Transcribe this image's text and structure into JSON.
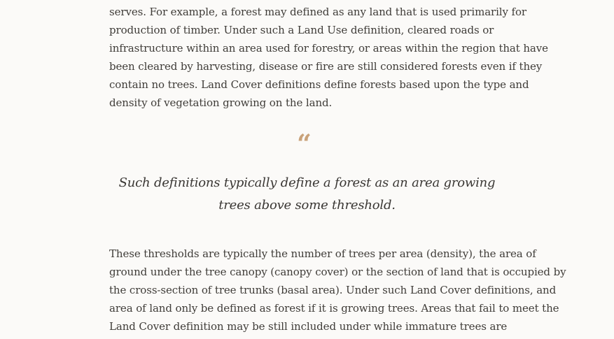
{
  "paragraph_1": {
    "lines": [
      "serves. For example, a forest may defined as any land that is used primarily for",
      "production of timber. Under such a Land Use definition, cleared roads or",
      "infrastructure within an area used for forestry, or areas within the region that have",
      "been cleared by harvesting, disease or fire are still considered forests even if they",
      "contain no trees. Land Cover definitions define forests based upon the type and",
      "density of vegetation growing on the land."
    ]
  },
  "pullquote": {
    "mark": "“",
    "lines": [
      "Such definitions typically define a forest as an area growing",
      "trees above some threshold."
    ]
  },
  "paragraph_2": {
    "lines": [
      "These thresholds are typically the number of trees per area (density), the area of",
      "ground under the tree canopy (canopy cover) or the section of land that is occupied by",
      "the cross-section of tree trunks (basal area). Under such Land Cover definitions, and",
      "area of land only be defined as forest if it is growing trees. Areas that fail to meet the",
      "Land Cover definition may be still included under while immature trees are"
    ]
  },
  "colors": {
    "background": "#fbfaf8",
    "text": "#3f3c38",
    "quote_mark": "#c9a27a"
  }
}
